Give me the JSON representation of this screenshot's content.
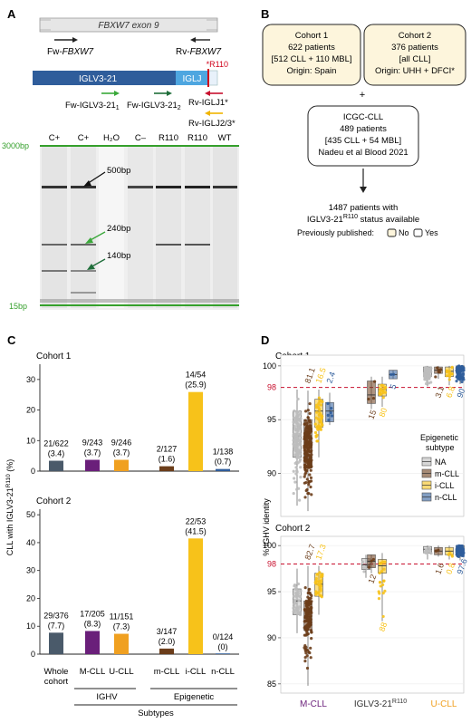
{
  "panels": {
    "a": "A",
    "b": "B",
    "c": "C",
    "d": "D"
  },
  "panelA": {
    "exon_label": "FBXW7 exon 9",
    "fw_fbxw7_pre": "Fw-",
    "fw_fbxw7_gene": "FBXW7",
    "rv_fbxw7_pre": "Rv-",
    "rv_fbxw7_gene": "FBXW7",
    "r110_mark": "*R110",
    "iglv_label": "IGLV3-21",
    "iglj_label": "IGLJ",
    "fw_iglv1": "Fw-IGLV3-21",
    "fw_iglv1_sub": "1",
    "fw_iglv2": "Fw-IGLV3-21",
    "fw_iglv2_sub": "2",
    "rv_iglj1": "Rv-IGLJ1*",
    "rv_iglj23": "Rv-IGLJ2/3*",
    "lanes": [
      "C+",
      "C+",
      "H₂O",
      "C–",
      "R110",
      "R110",
      "WT"
    ],
    "marker_top": "3000bp",
    "marker_bottom": "15bp",
    "band_500": "500bp",
    "band_240": "240bp",
    "band_140": "140bp",
    "colors": {
      "iglv": "#2f5d9b",
      "iglj": "#4ea6e0",
      "r110": "#d0021b",
      "marker": "#35a02c",
      "fw1": "#3aa83a",
      "fw2": "#1f6e3a",
      "rv1": "#c8102e",
      "rv2": "#f0b400"
    }
  },
  "panelB": {
    "cohort1": {
      "title": "Cohort 1",
      "line1": "622 patients",
      "line2": "[512 CLL + 110 MBL]",
      "line3": "Origin: Spain"
    },
    "cohort2": {
      "title": "Cohort 2",
      "line1": "376 patients",
      "line2": "[all CLL]",
      "line3": "Origin: UHH + DFCI*"
    },
    "plus": "+",
    "icgc": {
      "title": "ICGC-CLL",
      "line1": "489 patients",
      "line2": "[435 CLL + 54 MBL]",
      "line3": "Nadeu et al Blood 2021"
    },
    "result_line1": "1487 patients with",
    "result_line2_pre": "IGLV3-21",
    "result_line2_sup": "R110",
    "result_line2_post": " status available",
    "prev_label": "Previously published:",
    "prev_no": "No",
    "prev_yes": "Yes",
    "box_fill": "#fdf5dc"
  },
  "panelC": {
    "ylabel": "CLL with IGLV3-21R110 (%)",
    "xgroups": [
      "IGHV",
      "Epigenetic"
    ],
    "xgroup_title": "Subtypes",
    "categories": [
      "Whole cohort",
      "M-CLL",
      "U-CLL",
      "m-CLL",
      "i-CLL",
      "n-CLL"
    ],
    "colors": [
      "#4a5a6a",
      "#6a1f7a",
      "#f0a020",
      "#6b3d1a",
      "#f7c21a",
      "#2f5d9b"
    ]
  },
  "chart_data": [
    {
      "type": "bar",
      "title": "Cohort 1",
      "categories": [
        "Whole cohort",
        "M-CLL",
        "U-CLL",
        "m-CLL",
        "i-CLL",
        "n-CLL"
      ],
      "values": [
        3.4,
        3.7,
        3.7,
        1.6,
        25.9,
        0.7
      ],
      "labels": [
        [
          "21/622",
          "(3.4)"
        ],
        [
          "9/243",
          "(3.7)"
        ],
        [
          "9/246",
          "(3.7)"
        ],
        [
          "2/127",
          "(1.6)"
        ],
        [
          "14/54",
          "(25.9)"
        ],
        [
          "1/138",
          "(0.7)"
        ]
      ],
      "ylim": [
        0,
        35
      ],
      "yticks": [
        0,
        10,
        20,
        30
      ]
    },
    {
      "type": "bar",
      "title": "Cohort 2",
      "categories": [
        "Whole cohort",
        "M-CLL",
        "U-CLL",
        "m-CLL",
        "i-CLL",
        "n-CLL"
      ],
      "values": [
        7.7,
        8.3,
        7.3,
        2.0,
        41.5,
        0
      ],
      "labels": [
        [
          "29/376",
          "(7.7)"
        ],
        [
          "17/205",
          "(8.3)"
        ],
        [
          "11/151",
          "(7.3)"
        ],
        [
          "3/147",
          "(2.0)"
        ],
        [
          "22/53",
          "(41.5)"
        ],
        [
          "0/124",
          "(0)"
        ]
      ],
      "ylim": [
        0,
        52
      ],
      "yticks": [
        0,
        10,
        20,
        30,
        40,
        50
      ]
    },
    {
      "type": "scatter",
      "title": "Cohort 1",
      "ylabel": "% IGHV identity",
      "ylim": [
        86,
        101
      ],
      "yticks": [
        90,
        95,
        100
      ],
      "threshold": 98,
      "groups": [
        "M-CLL",
        "IGLV3-21R110",
        "U-CLL"
      ],
      "series": [
        {
          "group": "M-CLL",
          "subtype": "NA",
          "q1": 91.5,
          "median": 93.5,
          "q3": 95.8,
          "lo": 87,
          "hi": 97.8,
          "n": 140
        },
        {
          "group": "M-CLL",
          "subtype": "m-CLL",
          "q1": 90.5,
          "median": 92.8,
          "q3": 95.0,
          "lo": 86.5,
          "hi": 97.7,
          "n": 200,
          "label": "81.1"
        },
        {
          "group": "M-CLL",
          "subtype": "i-CLL",
          "q1": 94.3,
          "median": 95.8,
          "q3": 96.9,
          "lo": 91.5,
          "hi": 97.8,
          "n": 45,
          "label": "16.5"
        },
        {
          "group": "M-CLL",
          "subtype": "n-CLL",
          "q1": 94.8,
          "median": 95.8,
          "q3": 96.6,
          "lo": 94.5,
          "hi": 97.5,
          "n": 6,
          "label": "2.4"
        },
        {
          "group": "IGLV3-21R110",
          "subtype": "m-CLL",
          "q1": 96.5,
          "median": 97.3,
          "q3": 98.6,
          "lo": 96.0,
          "hi": 99.0,
          "n": 3,
          "label": "15"
        },
        {
          "group": "IGLV3-21R110",
          "subtype": "i-CLL",
          "q1": 97.2,
          "median": 97.8,
          "q3": 98.3,
          "lo": 96.2,
          "hi": 99.0,
          "n": 16,
          "label": "80"
        },
        {
          "group": "IGLV3-21R110",
          "subtype": "n-CLL",
          "q1": 98.8,
          "median": 99.2,
          "q3": 99.6,
          "lo": 98.8,
          "hi": 99.6,
          "n": 2,
          "label": "5"
        },
        {
          "group": "U-CLL",
          "subtype": "NA",
          "q1": 99.0,
          "median": 99.5,
          "q3": 99.9,
          "lo": 98.1,
          "hi": 100,
          "n": 70
        },
        {
          "group": "U-CLL",
          "subtype": "m-CLL",
          "q1": 99.3,
          "median": 99.6,
          "q3": 99.9,
          "lo": 98.8,
          "hi": 100,
          "n": 6,
          "label": "3.1"
        },
        {
          "group": "U-CLL",
          "subtype": "i-CLL",
          "q1": 99.0,
          "median": 99.5,
          "q3": 99.9,
          "lo": 98.2,
          "hi": 100,
          "n": 12,
          "label": "6.8"
        },
        {
          "group": "U-CLL",
          "subtype": "n-CLL",
          "q1": 99.5,
          "median": 99.8,
          "q3": 100,
          "lo": 98.3,
          "hi": 100,
          "n": 90,
          "label": "90"
        }
      ]
    },
    {
      "type": "scatter",
      "title": "Cohort 2",
      "ylabel": "% IGHV identity",
      "ylim": [
        84,
        101
      ],
      "yticks": [
        85,
        90,
        95,
        100
      ],
      "threshold": 98,
      "groups": [
        "M-CLL",
        "IGLV3-21R110",
        "U-CLL"
      ],
      "series": [
        {
          "group": "M-CLL",
          "subtype": "NA",
          "q1": 92.5,
          "median": 94.0,
          "q3": 95.3,
          "lo": 90.5,
          "hi": 97.5,
          "n": 40
        },
        {
          "group": "M-CLL",
          "subtype": "m-CLL",
          "q1": 90.8,
          "median": 92.3,
          "q3": 94.0,
          "lo": 84.8,
          "hi": 97.8,
          "n": 150,
          "label": "82.7"
        },
        {
          "group": "M-CLL",
          "subtype": "i-CLL",
          "q1": 94.5,
          "median": 95.8,
          "q3": 97.0,
          "lo": 92.5,
          "hi": 97.8,
          "n": 30,
          "label": "17.3"
        },
        {
          "group": "IGLV3-21R110",
          "subtype": "NA",
          "q1": 97.4,
          "median": 97.9,
          "q3": 98.6,
          "lo": 96.5,
          "hi": 99.0,
          "n": 8
        },
        {
          "group": "IGLV3-21R110",
          "subtype": "m-CLL",
          "q1": 97.6,
          "median": 98.3,
          "q3": 99.0,
          "lo": 97.0,
          "hi": 99.0,
          "n": 3,
          "label": "12"
        },
        {
          "group": "IGLV3-21R110",
          "subtype": "i-CLL",
          "q1": 97.0,
          "median": 97.8,
          "q3": 98.5,
          "lo": 91.8,
          "hi": 99.2,
          "n": 20,
          "label": "88"
        },
        {
          "group": "U-CLL",
          "subtype": "NA",
          "q1": 99.2,
          "median": 99.6,
          "q3": 99.9,
          "lo": 98.5,
          "hi": 100,
          "n": 12
        },
        {
          "group": "U-CLL",
          "subtype": "m-CLL",
          "q1": 99.0,
          "median": 99.4,
          "q3": 99.8,
          "lo": 98.8,
          "hi": 100,
          "n": 3,
          "label": "1.6"
        },
        {
          "group": "U-CLL",
          "subtype": "i-CLL",
          "q1": 99.0,
          "median": 99.4,
          "q3": 99.8,
          "lo": 98.5,
          "hi": 100,
          "n": 4,
          "label": "0.8"
        },
        {
          "group": "U-CLL",
          "subtype": "n-CLL",
          "q1": 99.4,
          "median": 99.7,
          "q3": 100,
          "lo": 98.4,
          "hi": 100,
          "n": 70,
          "label": "97.6"
        }
      ]
    }
  ],
  "panelD": {
    "ylabel": "% IGHV identity",
    "threshold_label": "98",
    "xlabels": [
      {
        "pre": "M-CLL",
        "sup": ""
      },
      {
        "pre": "IGLV3-21",
        "sup": "R110"
      },
      {
        "pre": "U-CLL",
        "sup": ""
      }
    ],
    "xlabel_colors": [
      "#6a1f7a",
      "#333333",
      "#f0a020"
    ],
    "legend_title_1": "Epigenetic",
    "legend_title_2": "subtype",
    "legend": [
      {
        "key": "NA",
        "label": "NA"
      },
      {
        "key": "m-CLL",
        "label": "m-CLL"
      },
      {
        "key": "i-CLL",
        "label": "i-CLL"
      },
      {
        "key": "n-CLL",
        "label": "n-CLL"
      }
    ],
    "subtype_colors": {
      "NA": "#bdbdbd",
      "m-CLL": "#6b3d1a",
      "i-CLL": "#f7c21a",
      "n-CLL": "#2f5d9b"
    },
    "threshold_color": "#c8102e"
  }
}
